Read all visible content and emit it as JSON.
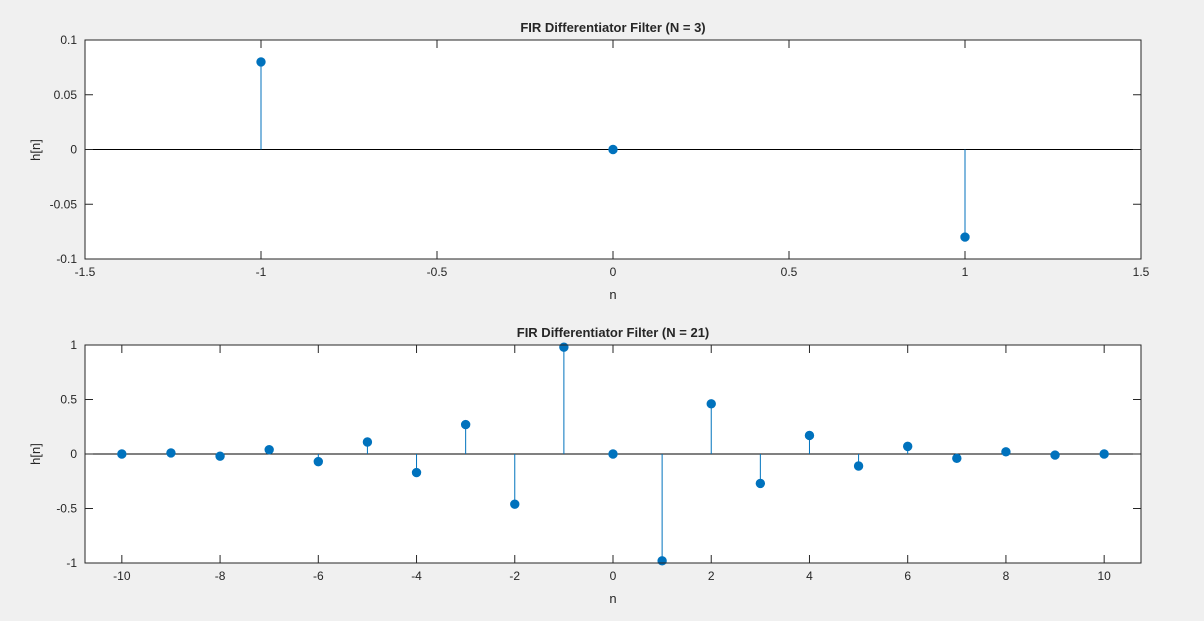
{
  "chart_data": [
    {
      "type": "stem",
      "title": "FIR Differentiator Filter (N = 3)",
      "xlabel": "n",
      "ylabel": "h[n]",
      "xlim": [
        -1.5,
        1.5
      ],
      "ylim": [
        -0.1,
        0.1
      ],
      "x_ticks": [
        -1.5,
        -1,
        -0.5,
        0,
        0.5,
        1,
        1.5
      ],
      "y_ticks": [
        -0.1,
        -0.05,
        0,
        0.05,
        0.1
      ],
      "x_tick_labels": [
        "-1.5",
        "-1",
        "-0.5",
        "0",
        "0.5",
        "1",
        "1.5"
      ],
      "y_tick_labels": [
        "-0.1",
        "-0.05",
        "0",
        "0.05",
        "0.1"
      ],
      "series": [
        {
          "x": [
            -1,
            0,
            1
          ],
          "values": [
            0.08,
            0,
            -0.08
          ]
        }
      ],
      "color": "#0072bd",
      "grid": false
    },
    {
      "type": "stem",
      "title": "FIR Differentiator Filter (N = 21)",
      "xlabel": "n",
      "ylabel": "h[n]",
      "xlim": [
        -10.75,
        10.75
      ],
      "ylim": [
        -1,
        1
      ],
      "x_ticks": [
        -10,
        -8,
        -6,
        -4,
        -2,
        0,
        2,
        4,
        6,
        8,
        10
      ],
      "y_ticks": [
        -1,
        -0.5,
        0,
        0.5,
        1
      ],
      "x_tick_labels": [
        "-10",
        "-8",
        "-6",
        "-4",
        "-2",
        "0",
        "2",
        "4",
        "6",
        "8",
        "10"
      ],
      "y_tick_labels": [
        "-1",
        "-0.5",
        "0",
        "0.5",
        "1"
      ],
      "series": [
        {
          "x": [
            -10,
            -9,
            -8,
            -7,
            -6,
            -5,
            -4,
            -3,
            -2,
            -1,
            0,
            1,
            2,
            3,
            4,
            5,
            6,
            7,
            8,
            9,
            10
          ],
          "values": [
            0.0,
            0.01,
            -0.02,
            0.04,
            -0.07,
            0.11,
            -0.17,
            0.27,
            -0.46,
            0.98,
            0,
            -0.98,
            0.46,
            -0.27,
            0.17,
            -0.11,
            0.07,
            -0.04,
            0.02,
            -0.01,
            0.0
          ]
        }
      ],
      "color": "#0072bd",
      "grid": false
    }
  ]
}
